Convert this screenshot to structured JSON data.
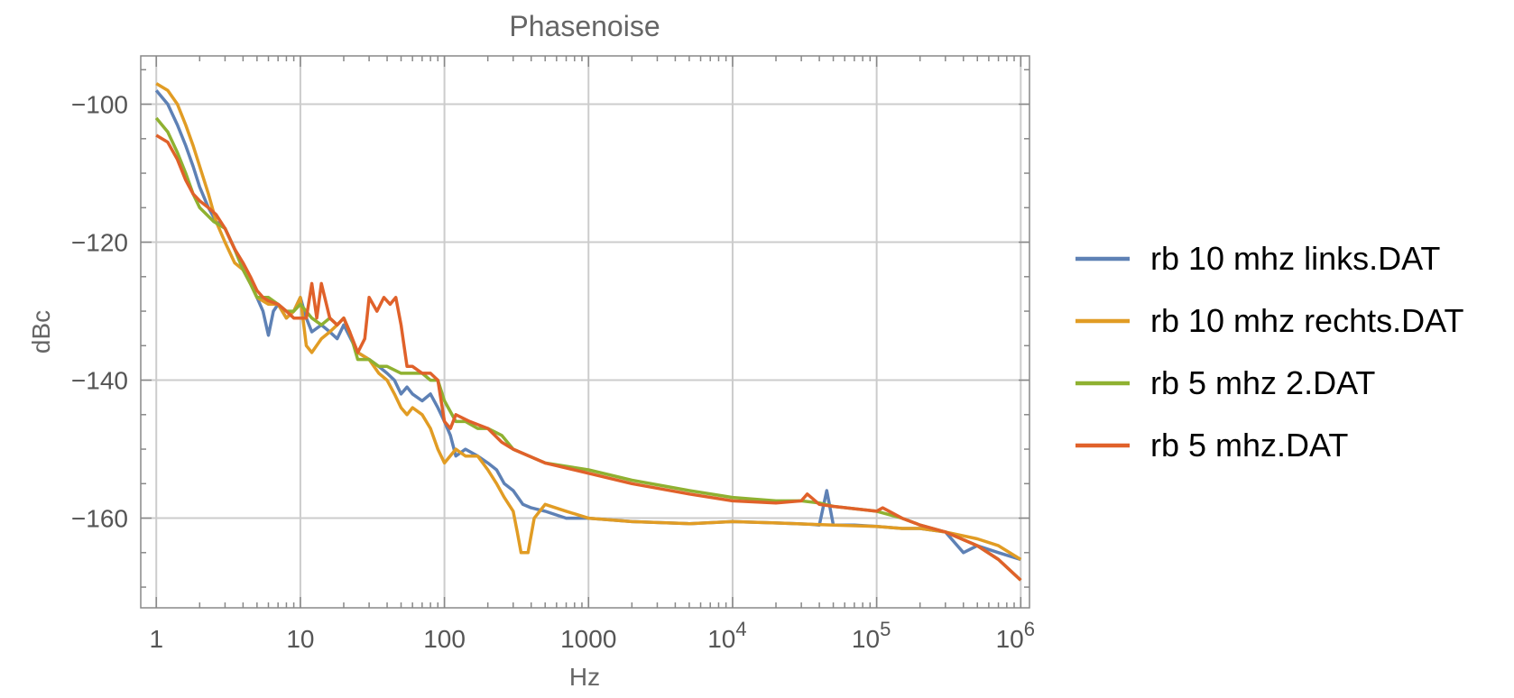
{
  "chart_data": {
    "type": "line",
    "title": "Phasenoise",
    "xlabel": "Hz",
    "ylabel": "dBc",
    "x_scale": "log",
    "xlim": [
      0.78,
      1150000
    ],
    "ylim": [
      -173,
      -93
    ],
    "x_ticks": [
      {
        "value": 1,
        "label": "1"
      },
      {
        "value": 10,
        "label": "10"
      },
      {
        "value": 100,
        "label": "100"
      },
      {
        "value": 1000,
        "label": "1000"
      },
      {
        "value": 10000,
        "label": "10",
        "exp": "4"
      },
      {
        "value": 100000,
        "label": "10",
        "exp": "5"
      },
      {
        "value": 1000000,
        "label": "10",
        "exp": "6"
      }
    ],
    "y_ticks": [
      {
        "value": -100,
        "label": "−100"
      },
      {
        "value": -120,
        "label": "−120"
      },
      {
        "value": -140,
        "label": "−140"
      },
      {
        "value": -160,
        "label": "−160"
      }
    ],
    "grid": true,
    "legend_position": "right",
    "series": [
      {
        "name": "rb 10 mhz links.DAT",
        "color": "#5E81B5",
        "points": [
          [
            1,
            -98
          ],
          [
            1.2,
            -100
          ],
          [
            1.4,
            -103
          ],
          [
            1.6,
            -106
          ],
          [
            1.8,
            -109
          ],
          [
            2,
            -112
          ],
          [
            2.3,
            -115
          ],
          [
            2.6,
            -117
          ],
          [
            3,
            -118
          ],
          [
            3.5,
            -121
          ],
          [
            4,
            -124
          ],
          [
            4.5,
            -126
          ],
          [
            5,
            -128
          ],
          [
            5.5,
            -130
          ],
          [
            6,
            -133.5
          ],
          [
            6.5,
            -130
          ],
          [
            7,
            -129
          ],
          [
            8,
            -131
          ],
          [
            9,
            -130
          ],
          [
            10,
            -128
          ],
          [
            11,
            -131
          ],
          [
            12,
            -133
          ],
          [
            14,
            -132
          ],
          [
            16,
            -133
          ],
          [
            18,
            -134
          ],
          [
            20,
            -132
          ],
          [
            25,
            -136
          ],
          [
            30,
            -137
          ],
          [
            35,
            -138
          ],
          [
            40,
            -139
          ],
          [
            45,
            -140
          ],
          [
            50,
            -142
          ],
          [
            55,
            -141
          ],
          [
            60,
            -142
          ],
          [
            70,
            -143
          ],
          [
            80,
            -142
          ],
          [
            90,
            -144
          ],
          [
            100,
            -146
          ],
          [
            110,
            -148
          ],
          [
            120,
            -151
          ],
          [
            140,
            -150
          ],
          [
            170,
            -151
          ],
          [
            200,
            -152
          ],
          [
            230,
            -153
          ],
          [
            260,
            -155
          ],
          [
            300,
            -156
          ],
          [
            350,
            -158
          ],
          [
            400,
            -158.5
          ],
          [
            500,
            -159
          ],
          [
            700,
            -160
          ],
          [
            1000,
            -160
          ],
          [
            2000,
            -160.5
          ],
          [
            5000,
            -160.8
          ],
          [
            10000,
            -160.5
          ],
          [
            20000,
            -160.7
          ],
          [
            35000,
            -160.9
          ],
          [
            40000,
            -161
          ],
          [
            45000,
            -156
          ],
          [
            50000,
            -161
          ],
          [
            70000,
            -161
          ],
          [
            100000,
            -161.2
          ],
          [
            150000,
            -161.5
          ],
          [
            200000,
            -161.5
          ],
          [
            300000,
            -162
          ],
          [
            400000,
            -165
          ],
          [
            500000,
            -164
          ],
          [
            700000,
            -165
          ],
          [
            1000000,
            -166
          ]
        ]
      },
      {
        "name": "rb 10 mhz rechts.DAT",
        "color": "#E19C24",
        "points": [
          [
            1,
            -97
          ],
          [
            1.2,
            -98
          ],
          [
            1.4,
            -100
          ],
          [
            1.6,
            -103
          ],
          [
            1.8,
            -106
          ],
          [
            2,
            -109
          ],
          [
            2.3,
            -113
          ],
          [
            2.6,
            -117
          ],
          [
            3,
            -120
          ],
          [
            3.5,
            -123
          ],
          [
            4,
            -124
          ],
          [
            4.5,
            -126
          ],
          [
            5,
            -128
          ],
          [
            6,
            -129
          ],
          [
            7,
            -129
          ],
          [
            8,
            -131
          ],
          [
            9,
            -130
          ],
          [
            10,
            -128
          ],
          [
            11,
            -135
          ],
          [
            12,
            -136
          ],
          [
            14,
            -134
          ],
          [
            16,
            -133
          ],
          [
            18,
            -132
          ],
          [
            20,
            -131
          ],
          [
            25,
            -136
          ],
          [
            30,
            -137
          ],
          [
            35,
            -139
          ],
          [
            40,
            -140
          ],
          [
            45,
            -142
          ],
          [
            50,
            -144
          ],
          [
            55,
            -145
          ],
          [
            60,
            -144
          ],
          [
            70,
            -145
          ],
          [
            80,
            -147
          ],
          [
            90,
            -150
          ],
          [
            100,
            -152
          ],
          [
            120,
            -150
          ],
          [
            140,
            -151
          ],
          [
            170,
            -151
          ],
          [
            200,
            -153
          ],
          [
            230,
            -155
          ],
          [
            260,
            -157
          ],
          [
            300,
            -159
          ],
          [
            320,
            -162
          ],
          [
            340,
            -165
          ],
          [
            380,
            -165
          ],
          [
            420,
            -160
          ],
          [
            500,
            -158
          ],
          [
            700,
            -159
          ],
          [
            1000,
            -160
          ],
          [
            2000,
            -160.5
          ],
          [
            5000,
            -160.8
          ],
          [
            10000,
            -160.5
          ],
          [
            20000,
            -160.7
          ],
          [
            50000,
            -161
          ],
          [
            100000,
            -161.2
          ],
          [
            150000,
            -161.5
          ],
          [
            200000,
            -161.5
          ],
          [
            300000,
            -162
          ],
          [
            500000,
            -163
          ],
          [
            700000,
            -164
          ],
          [
            1000000,
            -166
          ]
        ]
      },
      {
        "name": "rb 5 mhz 2.DAT",
        "color": "#8FB131",
        "points": [
          [
            1,
            -102
          ],
          [
            1.2,
            -104
          ],
          [
            1.4,
            -107
          ],
          [
            1.6,
            -110
          ],
          [
            1.8,
            -113
          ],
          [
            2,
            -115
          ],
          [
            2.5,
            -117
          ],
          [
            3,
            -118
          ],
          [
            3.5,
            -121
          ],
          [
            4,
            -124
          ],
          [
            4.5,
            -126
          ],
          [
            5,
            -128
          ],
          [
            6,
            -128
          ],
          [
            7,
            -129
          ],
          [
            8,
            -130
          ],
          [
            9,
            -130
          ],
          [
            10,
            -129
          ],
          [
            12,
            -131
          ],
          [
            14,
            -132
          ],
          [
            16,
            -131
          ],
          [
            18,
            -132
          ],
          [
            20,
            -131
          ],
          [
            22,
            -133
          ],
          [
            25,
            -137
          ],
          [
            30,
            -137
          ],
          [
            35,
            -138
          ],
          [
            40,
            -138
          ],
          [
            50,
            -139
          ],
          [
            60,
            -139
          ],
          [
            70,
            -139
          ],
          [
            80,
            -140
          ],
          [
            90,
            -140
          ],
          [
            100,
            -143
          ],
          [
            120,
            -146
          ],
          [
            140,
            -146
          ],
          [
            170,
            -147
          ],
          [
            200,
            -147
          ],
          [
            250,
            -148
          ],
          [
            300,
            -150
          ],
          [
            500,
            -152
          ],
          [
            1000,
            -153
          ],
          [
            2000,
            -154.5
          ],
          [
            5000,
            -156
          ],
          [
            10000,
            -157
          ],
          [
            20000,
            -157.5
          ],
          [
            30000,
            -157.5
          ],
          [
            40000,
            -157.8
          ],
          [
            50000,
            -158.3
          ],
          [
            100000,
            -159
          ],
          [
            150000,
            -160
          ],
          [
            200000,
            -161
          ],
          [
            300000,
            -162
          ],
          [
            500000,
            -164
          ],
          [
            700000,
            -166
          ],
          [
            1000000,
            -169
          ]
        ]
      },
      {
        "name": "rb 5 mhz.DAT",
        "color": "#E0612A",
        "points": [
          [
            1,
            -104.5
          ],
          [
            1.2,
            -105.5
          ],
          [
            1.4,
            -108
          ],
          [
            1.6,
            -111
          ],
          [
            1.8,
            -113
          ],
          [
            2,
            -114
          ],
          [
            2.3,
            -115
          ],
          [
            2.6,
            -116
          ],
          [
            3,
            -118
          ],
          [
            3.5,
            -121
          ],
          [
            4,
            -123
          ],
          [
            4.5,
            -125
          ],
          [
            5,
            -127
          ],
          [
            5.5,
            -128
          ],
          [
            6,
            -128.5
          ],
          [
            7,
            -129
          ],
          [
            8,
            -130
          ],
          [
            9,
            -131
          ],
          [
            10,
            -131
          ],
          [
            11,
            -131
          ],
          [
            12,
            -126
          ],
          [
            13,
            -131
          ],
          [
            14,
            -126
          ],
          [
            16,
            -131
          ],
          [
            18,
            -132
          ],
          [
            20,
            -131
          ],
          [
            22,
            -133
          ],
          [
            25,
            -136
          ],
          [
            28,
            -134
          ],
          [
            30,
            -128
          ],
          [
            34,
            -130
          ],
          [
            38,
            -128
          ],
          [
            42,
            -129
          ],
          [
            46,
            -128
          ],
          [
            50,
            -132
          ],
          [
            55,
            -138
          ],
          [
            60,
            -138
          ],
          [
            70,
            -139
          ],
          [
            80,
            -139
          ],
          [
            90,
            -140
          ],
          [
            100,
            -146
          ],
          [
            110,
            -147
          ],
          [
            120,
            -145
          ],
          [
            150,
            -146
          ],
          [
            200,
            -147
          ],
          [
            250,
            -149
          ],
          [
            300,
            -150
          ],
          [
            500,
            -152
          ],
          [
            1000,
            -153.5
          ],
          [
            2000,
            -155
          ],
          [
            5000,
            -156.5
          ],
          [
            10000,
            -157.5
          ],
          [
            20000,
            -157.8
          ],
          [
            30000,
            -157.5
          ],
          [
            33000,
            -156.5
          ],
          [
            40000,
            -158
          ],
          [
            50000,
            -158.3
          ],
          [
            100000,
            -159
          ],
          [
            110000,
            -158.5
          ],
          [
            150000,
            -160
          ],
          [
            200000,
            -161
          ],
          [
            300000,
            -162
          ],
          [
            500000,
            -164
          ],
          [
            700000,
            -166
          ],
          [
            1000000,
            -169
          ]
        ]
      }
    ]
  }
}
